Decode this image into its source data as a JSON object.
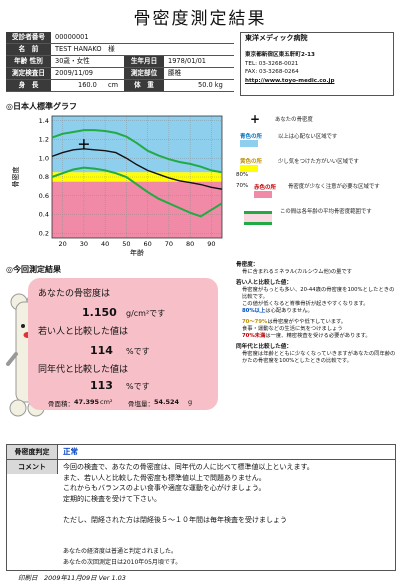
{
  "title": "骨密度測定結果",
  "header": {
    "rows": [
      {
        "label": "受診者番号",
        "value": "00000001"
      },
      {
        "label": "名　前",
        "value": "TEST HANAKO　様"
      },
      {
        "label": "年齢 性別",
        "value": "30歳・女性",
        "label2": "生年月日",
        "value2": "1978/01/01"
      },
      {
        "label": "測定検査日",
        "value": "2009/11/09",
        "label2": "測定部位",
        "value2": "腰椎"
      },
      {
        "label": "身　長",
        "value": "160.0",
        "unit": "cm",
        "label2": "体　重",
        "value2": "50.0 kg"
      }
    ]
  },
  "company": {
    "name": "東洋メディック病院",
    "address": "東京都新宿区東五軒町2-13",
    "tel": "TEL: 03-3268-0021",
    "fax": "FAX: 03-3268-0264",
    "url": "http://www.toyo-medic.co.jp"
  },
  "graph_section_title": "◎日本人標準グラフ",
  "graph_legend": {
    "plus_label": "あなたの骨密度",
    "blue": {
      "name": "青色の所",
      "text": "以上は心配ない区域です"
    },
    "yellow": {
      "name": "黄色の所",
      "text": "少し気をつけた方がいい区域です"
    },
    "red": {
      "name": "赤色の所",
      "text": "骨密度が少なく注意が必要な区域です"
    },
    "green": {
      "text": "この間は各年齢の平均骨密度範囲です"
    },
    "pct80": "80%",
    "pct70": "70%"
  },
  "chart_data": {
    "type": "line",
    "xlabel": "年齢",
    "ylabel": "骨密度",
    "x_ticks": [
      20,
      30,
      40,
      50,
      60,
      70,
      80,
      90
    ],
    "y_ticks": [
      0.2,
      0.4,
      0.6,
      0.8,
      1.0,
      1.2,
      1.4
    ],
    "xlim": [
      15,
      95
    ],
    "ylim": [
      0.15,
      1.45
    ],
    "zones": {
      "red_below": 0.75,
      "yellow_below": 0.85,
      "blue_above": 0.85
    },
    "point": {
      "age": 30,
      "bmd": 1.15
    },
    "avg_upper": {
      "x": [
        15,
        20,
        25,
        30,
        35,
        40,
        45,
        50,
        55,
        60,
        65,
        70,
        75,
        80,
        85,
        90,
        95
      ],
      "y": [
        1.22,
        1.26,
        1.28,
        1.3,
        1.3,
        1.29,
        1.27,
        1.23,
        1.16,
        1.08,
        1.03,
        0.99,
        0.96,
        0.94,
        0.91,
        0.87,
        0.85
      ]
    },
    "avg_mid": {
      "x": [
        15,
        20,
        25,
        30,
        35,
        40,
        45,
        50,
        55,
        60,
        65,
        70,
        75,
        80,
        85,
        90,
        95
      ],
      "y": [
        1.02,
        1.06,
        1.09,
        1.1,
        1.09,
        1.08,
        1.06,
        1.0,
        0.93,
        0.87,
        0.83,
        0.79,
        0.76,
        0.74,
        0.72,
        0.69,
        0.67
      ]
    },
    "avg_lower": {
      "x": [
        15,
        20,
        25,
        30,
        35,
        40,
        45,
        50,
        55,
        60,
        65,
        70,
        75,
        80,
        85,
        90,
        95
      ],
      "y": [
        0.8,
        0.84,
        0.88,
        0.9,
        0.89,
        0.87,
        0.84,
        0.8,
        0.72,
        0.64,
        0.57,
        0.52,
        0.47,
        0.42,
        0.38,
        0.45,
        0.52
      ]
    }
  },
  "result_section_title": "◎今回測定結果",
  "result": {
    "line1": "あなたの骨密度は",
    "bmd_value": "1.150",
    "bmd_unit": "g/cm²です",
    "line2": "若い人と比較した値は",
    "young_value": "114",
    "young_unit": "%です",
    "line3": "同年代と比較した値は",
    "age_value": "113",
    "age_unit": "%です",
    "area_label": "骨面積：",
    "area_value": "47.395",
    "area_unit": "cm²",
    "content_label": "骨塩量：",
    "content_value": "54.524",
    "content_unit": "g"
  },
  "notes": {
    "h1": "骨密度：",
    "t1": "骨に含まれるミネラル(カルシウム他)の量です",
    "h2": "若い人と比較した値：",
    "t2": "骨密度がもっとも多い、20-44歳の骨密度を100%としたときの比較です。",
    "t2b": "この値が低くなると脊椎骨折が起きやすくなります。",
    "t2c": "80%以上",
    "t2d": "は心配ありません。",
    "t3a": "70〜79%",
    "t3b": "は骨密度がやや低下しています。",
    "t3c": "食事・運動などの生活に気をつけましょう",
    "t3d": "70%未満",
    "t3e": "は一度、精密検査を受ける必要があります。",
    "h4": "同年代と比較した値：",
    "t4": "骨密度は年齢とともに少なくなっていきますがあなたの同年齢のかたの骨密度を100%としたときの比較です。"
  },
  "judgment": {
    "label": "骨密度判定",
    "value": "正常"
  },
  "comment": {
    "label": "コメント",
    "lines": [
      "今回の検査で、あなたの骨密度は、同年代の人に比べて標準値以上といえます。",
      "また、若い人と比較した骨密度も標準値以上で問題ありません。",
      "これからもバランスのよい食事や適度な運動を心がけましょう。",
      "定期的に検査を受けて下さい。",
      "",
      "ただし、閉経された方は閉経後５〜１０年間は毎年検査を受けましょう",
      "",
      "",
      "あなたの経済度は普通と判定されました。",
      "あなたの次回測定日は2010年05月頃です。"
    ]
  },
  "footer": {
    "label": "印刷日",
    "value": "2009年11月09日 Ver 1.03"
  },
  "colors": {
    "blue": "#8ecfee",
    "yellow": "#ffff00",
    "red": "#f08aa6",
    "green": "#22aa44",
    "pink": "#f7c0c8",
    "bone": "#f2f0e0"
  }
}
